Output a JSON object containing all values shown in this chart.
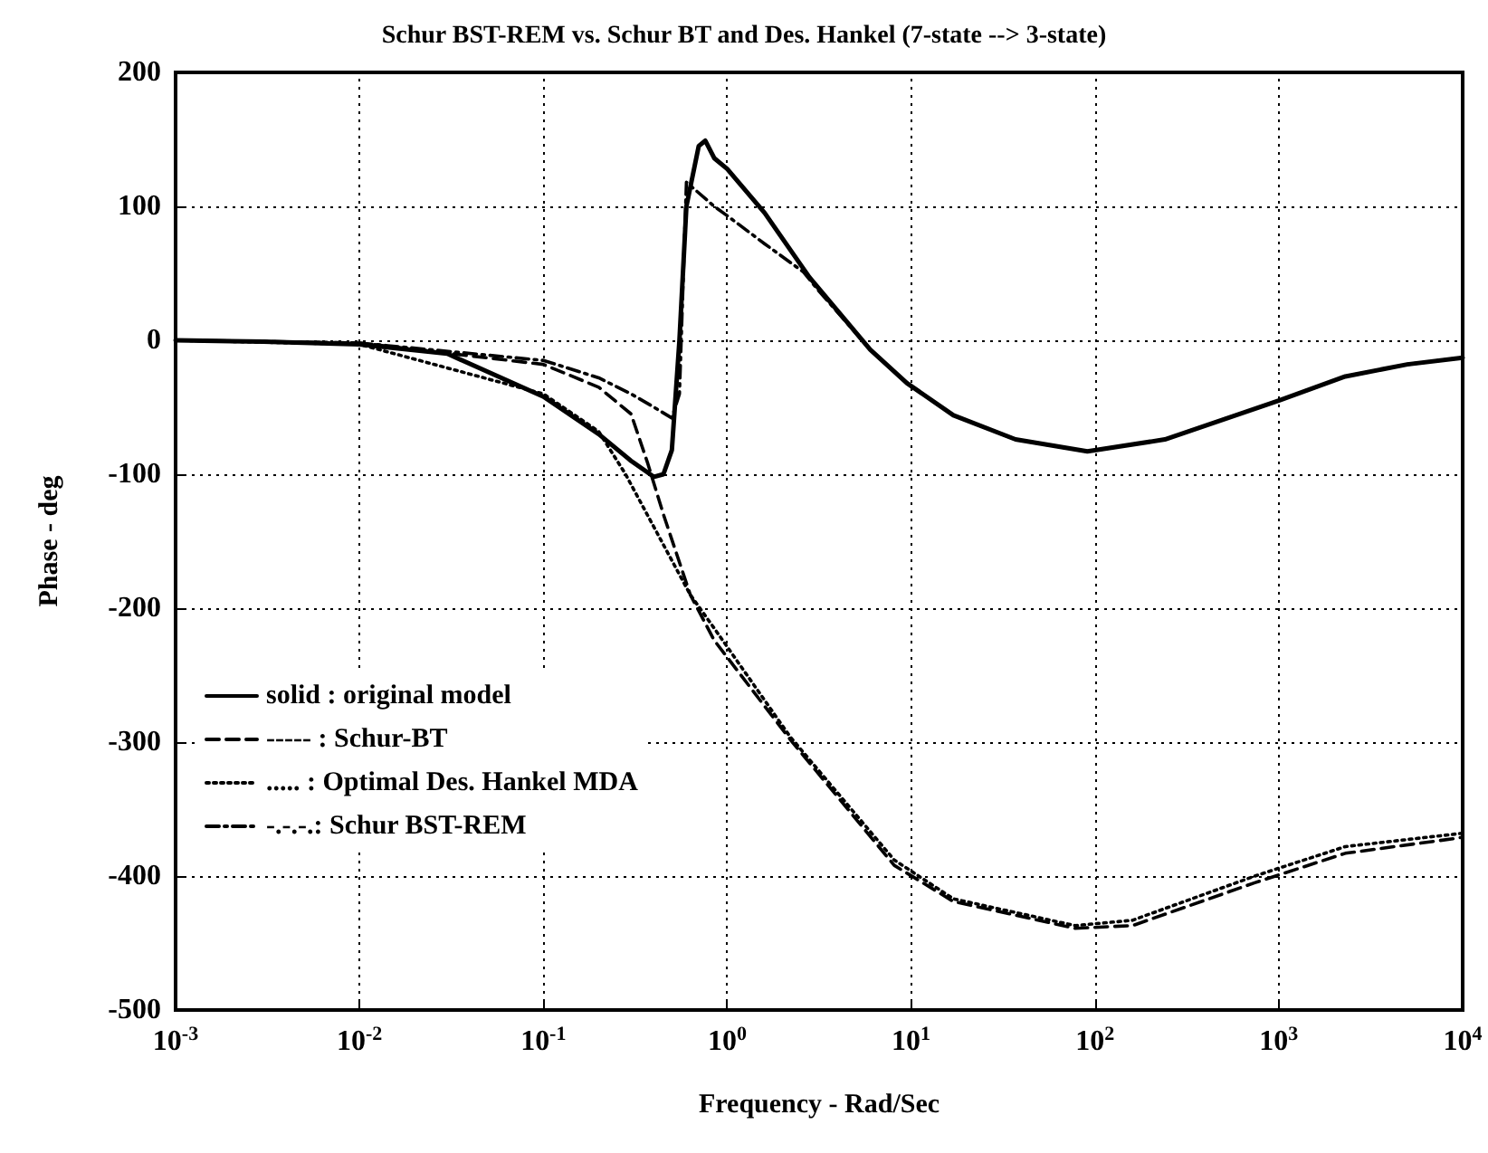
{
  "chart_data": {
    "type": "line",
    "title": "Schur BST-REM vs. Schur BT and Des. Hankel (7-state --> 3-state)",
    "xlabel": "Frequency - Rad/Sec",
    "ylabel": "Phase - deg",
    "log": "x",
    "grid": true,
    "legend": "left",
    "marker": "none",
    "xlim": [
      0.001,
      10000
    ],
    "xticks": [
      {
        "value": 0.001,
        "label": "10$^{-3}$"
      },
      {
        "value": 0.01,
        "label": "10$^{-2}$"
      },
      {
        "value": 0.1,
        "label": "10$^{-1}$"
      },
      {
        "value": 1,
        "label": "10$^{0}$"
      },
      {
        "value": 10,
        "label": "10$^{1}$"
      },
      {
        "value": 100,
        "label": "10$^{2}$"
      },
      {
        "value": 1000,
        "label": "10$^{3}$"
      },
      {
        "value": 10000,
        "label": "10$^{4}$"
      }
    ],
    "ylim": [
      -500,
      200
    ],
    "yticks": [
      -500,
      -400,
      -300,
      -200,
      -100,
      0,
      100,
      200
    ],
    "series": [
      {
        "name": "solid : original model",
        "color": "#000000",
        "line_style": "solid",
        "x": [
          0.001,
          0.003,
          0.01,
          0.03,
          0.1,
          0.2,
          0.3,
          0.4,
          0.45,
          0.5,
          0.55,
          0.6,
          0.7,
          0.76,
          0.85,
          1,
          1.6,
          2.8,
          6,
          9.5,
          17,
          37,
          91,
          240,
          1000,
          2300,
          5000,
          10000
        ],
        "values": [
          0,
          -1,
          -3,
          -10,
          -42,
          -70,
          -90,
          -102,
          -100,
          -82,
          0,
          100,
          145,
          149,
          136,
          128,
          95,
          47,
          -7,
          -32,
          -56,
          -74,
          -83,
          -74,
          -45,
          -27,
          -18,
          -13
        ]
      },
      {
        "name": "----- : Schur-BT",
        "color": "#000000",
        "line_style": "dashed",
        "x": [
          0.001,
          0.01,
          0.1,
          0.2,
          0.3,
          0.37,
          0.45,
          0.63,
          0.85,
          2.2,
          8.1,
          17,
          78,
          160,
          740,
          2300,
          9000,
          10000
        ],
        "values": [
          0,
          -2,
          -18,
          -35,
          -55,
          -92,
          -130,
          -190,
          -224,
          -298,
          -392,
          -419,
          -439,
          -437,
          -405,
          -383,
          -372,
          -371
        ]
      },
      {
        "name": "..... : Optimal Des. Hankel MDA",
        "color": "#000000",
        "line_style": "dotted",
        "x": [
          0.001,
          0.01,
          0.1,
          0.2,
          0.28,
          0.63,
          0.85,
          2.2,
          8.1,
          17,
          78,
          160,
          740,
          2300,
          10000
        ],
        "values": [
          0,
          -3,
          -40,
          -68,
          -100,
          -190,
          -215,
          -296,
          -388,
          -417,
          -437,
          -433,
          -400,
          -378,
          -368
        ]
      },
      {
        "name": "-.-.-.: Schur BST-REM",
        "color": "#000000",
        "line_style": "dashdot",
        "x": [
          0.001,
          0.01,
          0.1,
          0.2,
          0.3,
          0.4,
          0.5,
          0.55,
          0.6,
          0.85,
          1,
          1.6,
          2.6,
          3.1,
          6,
          9.5,
          17,
          37,
          91,
          240,
          1000,
          2300,
          5000,
          10000
        ],
        "values": [
          0,
          -2,
          -15,
          -28,
          -40,
          -50,
          -58,
          -40,
          118,
          100,
          93,
          72,
          51,
          38,
          -7,
          -32,
          -56,
          -74,
          -83,
          -74,
          -45,
          -27,
          -18,
          -13
        ]
      }
    ]
  }
}
